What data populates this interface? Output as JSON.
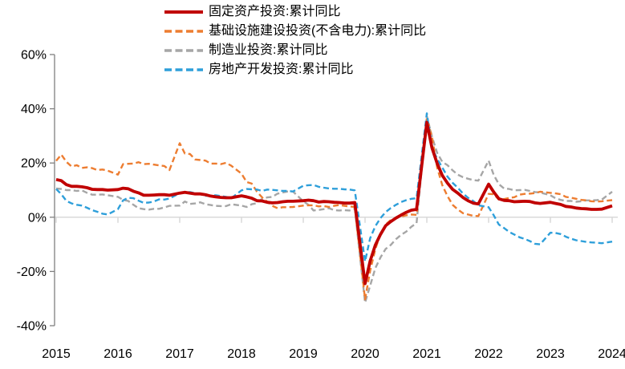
{
  "chart_data": {
    "type": "line",
    "title": "",
    "xlabel": "",
    "ylabel": "",
    "ylim": [
      -40,
      60
    ],
    "grid": "zero-line-only",
    "legend_position": "top",
    "axis_color": "#808080",
    "zero_line_color": "#D9D9D9",
    "label_color": "#000000",
    "yticks": [
      {
        "v": 60,
        "label": "60%"
      },
      {
        "v": 40,
        "label": "40%"
      },
      {
        "v": 20,
        "label": "20%"
      },
      {
        "v": 0,
        "label": "0%"
      },
      {
        "v": -20,
        "label": "-20%"
      },
      {
        "v": -40,
        "label": "-40%"
      }
    ],
    "xticks": [
      {
        "v": 2015,
        "label": "2015"
      },
      {
        "v": 2016,
        "label": "2016"
      },
      {
        "v": 2017,
        "label": "2017"
      },
      {
        "v": 2018,
        "label": "2018"
      },
      {
        "v": 2019,
        "label": "2019"
      },
      {
        "v": 2020,
        "label": "2020"
      },
      {
        "v": 2021,
        "label": "2021"
      },
      {
        "v": 2022,
        "label": "2022"
      },
      {
        "v": 2023,
        "label": "2023"
      },
      {
        "v": 2024,
        "label": "2024"
      }
    ],
    "x": [
      "2015-02",
      "2015-03",
      "2015-04",
      "2015-05",
      "2015-06",
      "2015-07",
      "2015-08",
      "2015-09",
      "2015-10",
      "2015-11",
      "2015-12",
      "2016-02",
      "2016-03",
      "2016-04",
      "2016-05",
      "2016-06",
      "2016-07",
      "2016-08",
      "2016-09",
      "2016-10",
      "2016-11",
      "2016-12",
      "2017-02",
      "2017-03",
      "2017-04",
      "2017-05",
      "2017-06",
      "2017-07",
      "2017-08",
      "2017-09",
      "2017-10",
      "2017-11",
      "2017-12",
      "2018-02",
      "2018-03",
      "2018-04",
      "2018-05",
      "2018-06",
      "2018-07",
      "2018-08",
      "2018-09",
      "2018-10",
      "2018-11",
      "2018-12",
      "2019-02",
      "2019-03",
      "2019-04",
      "2019-05",
      "2019-06",
      "2019-07",
      "2019-08",
      "2019-09",
      "2019-10",
      "2019-11",
      "2019-12",
      "2020-02",
      "2020-03",
      "2020-04",
      "2020-05",
      "2020-06",
      "2020-07",
      "2020-08",
      "2020-09",
      "2020-10",
      "2020-11",
      "2020-12",
      "2021-02",
      "2021-03",
      "2021-04",
      "2021-05",
      "2021-06",
      "2021-07",
      "2021-08",
      "2021-09",
      "2021-10",
      "2021-11",
      "2021-12",
      "2022-02",
      "2022-03",
      "2022-04",
      "2022-05",
      "2022-06",
      "2022-07",
      "2022-08",
      "2022-09",
      "2022-10",
      "2022-11",
      "2022-12",
      "2023-02",
      "2023-03",
      "2023-04",
      "2023-05",
      "2023-06",
      "2023-07",
      "2023-08",
      "2023-09",
      "2023-10",
      "2023-11",
      "2023-12",
      "2024-02"
    ],
    "series": [
      {
        "key": "fixed-asset-investment",
        "name": "固定资产投资:累计同比",
        "color": "#C00000",
        "style": "solid",
        "values": [
          13.9,
          13.5,
          12.0,
          11.4,
          11.4,
          11.2,
          10.9,
          10.3,
          10.2,
          10.2,
          10.0,
          10.2,
          10.7,
          10.5,
          9.6,
          9.0,
          8.1,
          8.1,
          8.2,
          8.3,
          8.3,
          8.1,
          8.9,
          9.2,
          8.9,
          8.6,
          8.6,
          8.3,
          7.8,
          7.5,
          7.3,
          7.2,
          7.2,
          7.9,
          7.5,
          7.0,
          6.1,
          6.0,
          5.5,
          5.3,
          5.4,
          5.7,
          5.9,
          5.9,
          6.1,
          6.3,
          6.1,
          5.6,
          5.8,
          5.7,
          5.5,
          5.4,
          5.2,
          5.2,
          5.4,
          -24.5,
          -16.1,
          -10.3,
          -6.3,
          -3.1,
          -1.6,
          -0.3,
          0.8,
          1.8,
          2.6,
          2.9,
          35.0,
          25.6,
          19.9,
          15.4,
          12.6,
          10.3,
          8.9,
          7.3,
          6.1,
          5.2,
          4.9,
          12.2,
          9.3,
          6.8,
          6.2,
          6.1,
          5.7,
          5.8,
          5.9,
          5.8,
          5.3,
          5.1,
          5.5,
          5.1,
          4.7,
          4.0,
          3.8,
          3.4,
          3.2,
          3.1,
          2.9,
          2.9,
          3.0,
          4.2
        ]
      },
      {
        "key": "infrastructure-ex-power",
        "name": "基础设施建设投资(不含电力):累计同比",
        "color": "#ED7D31",
        "style": "dashed",
        "values": [
          20.8,
          23.1,
          20.4,
          18.7,
          19.2,
          18.2,
          18.4,
          18.1,
          17.4,
          17.6,
          17.2,
          15.7,
          19.6,
          19.7,
          19.8,
          20.3,
          19.6,
          19.7,
          19.4,
          19.1,
          18.9,
          17.4,
          27.3,
          23.5,
          23.3,
          21.3,
          21.1,
          20.9,
          19.8,
          19.8,
          19.6,
          20.1,
          19.0,
          16.1,
          13.0,
          12.4,
          9.4,
          7.3,
          5.7,
          4.2,
          3.3,
          3.7,
          3.7,
          3.8,
          4.3,
          4.4,
          4.4,
          4.0,
          4.1,
          3.8,
          4.2,
          4.5,
          4.2,
          4.0,
          3.8,
          -30.3,
          -19.7,
          -11.8,
          -6.1,
          -2.7,
          -1.0,
          -0.3,
          0.2,
          0.7,
          1.0,
          0.9,
          36.6,
          29.7,
          18.4,
          11.8,
          7.8,
          4.6,
          2.9,
          1.5,
          1.0,
          0.5,
          0.4,
          8.6,
          8.5,
          6.5,
          6.7,
          7.1,
          7.4,
          8.3,
          8.6,
          8.7,
          8.9,
          9.4,
          9.0,
          8.8,
          8.5,
          7.5,
          7.2,
          6.8,
          6.4,
          6.2,
          5.9,
          5.8,
          5.9,
          6.3
        ]
      },
      {
        "key": "manufacturing-investment",
        "name": "制造业投资:累计同比",
        "color": "#A6A6A6",
        "style": "dashed",
        "values": [
          10.6,
          10.4,
          10.0,
          10.0,
          9.7,
          9.9,
          9.0,
          8.3,
          8.3,
          8.4,
          8.1,
          7.5,
          6.4,
          6.0,
          4.6,
          3.3,
          3.0,
          2.8,
          3.1,
          3.1,
          3.6,
          4.2,
          4.3,
          5.8,
          4.9,
          5.1,
          5.5,
          4.8,
          4.5,
          4.2,
          4.1,
          4.1,
          4.8,
          4.3,
          3.8,
          4.8,
          5.2,
          6.8,
          7.3,
          7.5,
          8.7,
          9.1,
          9.5,
          9.5,
          5.9,
          4.6,
          2.5,
          2.7,
          3.0,
          3.3,
          2.6,
          2.5,
          2.6,
          2.5,
          3.1,
          -31.5,
          -25.2,
          -18.8,
          -14.8,
          -11.7,
          -10.2,
          -8.1,
          -6.5,
          -5.3,
          -3.5,
          -2.2,
          37.3,
          29.8,
          23.8,
          20.4,
          19.2,
          17.3,
          15.7,
          14.8,
          14.2,
          13.7,
          13.5,
          20.9,
          15.6,
          12.2,
          10.6,
          10.4,
          9.9,
          10.0,
          10.1,
          9.7,
          9.3,
          9.1,
          8.1,
          7.0,
          6.4,
          6.0,
          6.0,
          5.7,
          5.9,
          6.2,
          6.2,
          6.3,
          6.5,
          9.4
        ]
      },
      {
        "key": "real-estate-development",
        "name": "房地产开发投资:累计同比",
        "color": "#2E9FDA",
        "style": "dashed",
        "values": [
          10.4,
          8.5,
          6.0,
          5.1,
          4.6,
          4.3,
          3.5,
          2.6,
          2.0,
          1.3,
          1.0,
          3.0,
          6.2,
          7.2,
          7.0,
          6.1,
          5.3,
          5.4,
          5.8,
          6.6,
          6.5,
          6.9,
          8.9,
          9.1,
          9.3,
          8.8,
          8.5,
          7.9,
          7.9,
          8.1,
          7.8,
          7.5,
          7.0,
          9.9,
          10.4,
          10.3,
          10.2,
          9.7,
          10.2,
          10.1,
          9.9,
          9.7,
          9.7,
          9.5,
          11.6,
          11.8,
          11.9,
          11.2,
          10.9,
          10.6,
          10.5,
          10.5,
          10.3,
          10.2,
          9.9,
          -16.3,
          -7.7,
          -3.3,
          -0.3,
          1.9,
          3.4,
          4.6,
          5.6,
          6.3,
          6.8,
          7.0,
          38.3,
          25.6,
          21.6,
          18.3,
          15.0,
          12.7,
          10.9,
          8.8,
          7.2,
          6.0,
          4.4,
          3.7,
          0.7,
          -2.7,
          -4.0,
          -5.4,
          -6.4,
          -7.4,
          -8.0,
          -8.8,
          -9.8,
          -10.0,
          -5.7,
          -5.8,
          -6.2,
          -7.2,
          -7.9,
          -8.5,
          -8.8,
          -9.1,
          -9.3,
          -9.4,
          -9.6,
          -9.0
        ]
      }
    ]
  }
}
